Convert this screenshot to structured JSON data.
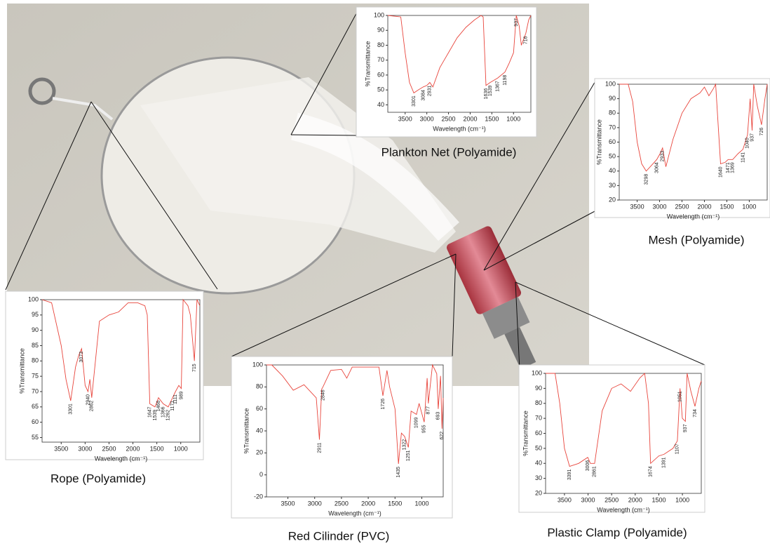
{
  "chart_data": [
    {
      "type": "line",
      "title": "Plankton Net (Polyamide)",
      "x_label": "Wavelength (cm⁻¹)",
      "y_label": "%Transmittance",
      "color": "#e8453c",
      "x": [
        3900,
        3600,
        3500,
        3400,
        3300,
        3200,
        3084,
        3000,
        2931,
        2860,
        2700,
        2500,
        2300,
        2100,
        1900,
        1750,
        1700,
        1636,
        1539,
        1367,
        1198,
        1100,
        1000,
        937,
        870,
        820,
        716,
        650,
        600
      ],
      "values": [
        100,
        99,
        75,
        55,
        48,
        50,
        52,
        53,
        55,
        52,
        65,
        75,
        85,
        92,
        97,
        100,
        99,
        53,
        55,
        58,
        62,
        68,
        75,
        100,
        93,
        80,
        88,
        97,
        100
      ],
      "xlim": [
        3900,
        600
      ],
      "ylim": [
        35,
        100
      ],
      "xticks": [
        3500,
        3000,
        2500,
        2000,
        1500,
        1000
      ],
      "yticks": [
        40,
        50,
        60,
        70,
        80,
        90,
        100
      ],
      "peaks": [
        3301,
        3084,
        2931,
        1636,
        1539,
        1367,
        1198,
        937,
        716
      ]
    },
    {
      "type": "line",
      "title": "Mesh (Polyamide)",
      "x_label": "Wavelength (cm⁻¹)",
      "y_label": "%Transmittance",
      "color": "#e8453c",
      "x": [
        3900,
        3700,
        3600,
        3500,
        3400,
        3298,
        3150,
        3064,
        2990,
        2933,
        2860,
        2700,
        2500,
        2300,
        2100,
        2000,
        1900,
        1800,
        1750,
        1640,
        1540,
        1471,
        1369,
        1250,
        1141,
        1040,
        980,
        937,
        900,
        820,
        726,
        650,
        600
      ],
      "values": [
        100,
        100,
        88,
        60,
        45,
        40,
        45,
        48,
        52,
        56,
        43,
        62,
        80,
        90,
        94,
        98,
        92,
        97,
        100,
        45,
        46,
        48,
        48,
        52,
        55,
        65,
        90,
        68,
        100,
        85,
        72,
        90,
        100
      ],
      "xlim": [
        3900,
        600
      ],
      "ylim": [
        20,
        100
      ],
      "xticks": [
        3500,
        3000,
        2500,
        2000,
        1500,
        1000
      ],
      "yticks": [
        20,
        30,
        40,
        50,
        60,
        70,
        80,
        90,
        100
      ],
      "peaks": [
        3298,
        3064,
        2933,
        1640,
        1471,
        1369,
        1141,
        1040,
        937,
        726
      ]
    },
    {
      "type": "line",
      "title": "Rope (Polyamide)",
      "x_label": "Wavelength (cm⁻¹)",
      "y_label": "%Transmittance",
      "color": "#e8453c",
      "x": [
        3900,
        3700,
        3500,
        3400,
        3301,
        3200,
        3130,
        3073,
        3000,
        2940,
        2900,
        2862,
        2700,
        2500,
        2300,
        2100,
        1900,
        1750,
        1700,
        1647,
        1539,
        1466,
        1366,
        1262,
        1171,
        1111,
        1040,
        989,
        950,
        850,
        800,
        715,
        660,
        600
      ],
      "values": [
        100,
        99,
        85,
        74,
        67,
        78,
        82,
        84,
        72,
        70,
        74,
        68,
        93,
        95,
        96,
        99,
        99,
        98,
        95,
        66,
        65,
        68,
        66,
        65,
        68,
        70,
        72,
        71,
        100,
        98,
        95,
        80,
        100,
        98
      ],
      "xlim": [
        3900,
        600
      ],
      "ylim": [
        53.5,
        100
      ],
      "xticks": [
        3500,
        3000,
        2500,
        2000,
        1500,
        1000
      ],
      "yticks": [
        55,
        60,
        65,
        70,
        75,
        80,
        85,
        90,
        95,
        100
      ],
      "peaks": [
        3301,
        3073,
        2940,
        2862,
        1647,
        1539,
        1466,
        1366,
        1262,
        1171,
        1111,
        989,
        715
      ]
    },
    {
      "type": "line",
      "title": "Red Cilinder (PVC)",
      "x_label": "Wavelength (cm⁻¹)",
      "y_label": "%Transmittance",
      "color": "#e8453c",
      "x": [
        3900,
        3800,
        3600,
        3400,
        3200,
        2970,
        2911,
        2870,
        2846,
        2700,
        2500,
        2400,
        2300,
        1800,
        1726,
        1650,
        1600,
        1500,
        1435,
        1380,
        1322,
        1251,
        1200,
        1099,
        1050,
        955,
        900,
        877,
        800,
        720,
        693,
        650,
        622,
        600
      ],
      "values": [
        100,
        100,
        90,
        77,
        82,
        70,
        32,
        78,
        80,
        95,
        96,
        88,
        98,
        98,
        72,
        95,
        80,
        60,
        10,
        38,
        35,
        25,
        58,
        55,
        65,
        48,
        88,
        65,
        100,
        92,
        60,
        90,
        42,
        70
      ],
      "xlim": [
        3900,
        600
      ],
      "ylim": [
        -20,
        100
      ],
      "xticks": [
        3500,
        3000,
        2500,
        2000,
        1500,
        1000
      ],
      "yticks": [
        -20,
        0,
        20,
        40,
        60,
        80,
        100
      ],
      "peaks": [
        2911,
        2846,
        1726,
        1435,
        1322,
        1251,
        1099,
        955,
        877,
        693,
        622
      ]
    },
    {
      "type": "line",
      "title": "Plastic Clamp (Polyamide)",
      "x_label": "Wavelength (cm⁻¹)",
      "y_label": "%Transmittance",
      "color": "#e8453c",
      "x": [
        3900,
        3700,
        3600,
        3500,
        3391,
        3200,
        3006,
        2950,
        2861,
        2700,
        2500,
        2300,
        2100,
        1900,
        1800,
        1720,
        1674,
        1500,
        1391,
        1200,
        1107,
        1051,
        1001,
        937,
        900,
        820,
        734,
        650,
        600
      ],
      "values": [
        100,
        100,
        80,
        50,
        38,
        40,
        44,
        40,
        40,
        75,
        90,
        93,
        88,
        97,
        100,
        80,
        40,
        45,
        46,
        50,
        55,
        90,
        70,
        68,
        100,
        88,
        78,
        90,
        95
      ],
      "xlim": [
        3900,
        600
      ],
      "ylim": [
        20,
        100
      ],
      "xticks": [
        3500,
        3000,
        2500,
        2000,
        1500,
        1000
      ],
      "yticks": [
        20,
        30,
        40,
        50,
        60,
        70,
        80,
        90,
        100
      ],
      "peaks": [
        3391,
        3006,
        2861,
        1674,
        1391,
        1107,
        1051,
        937,
        734
      ]
    }
  ]
}
